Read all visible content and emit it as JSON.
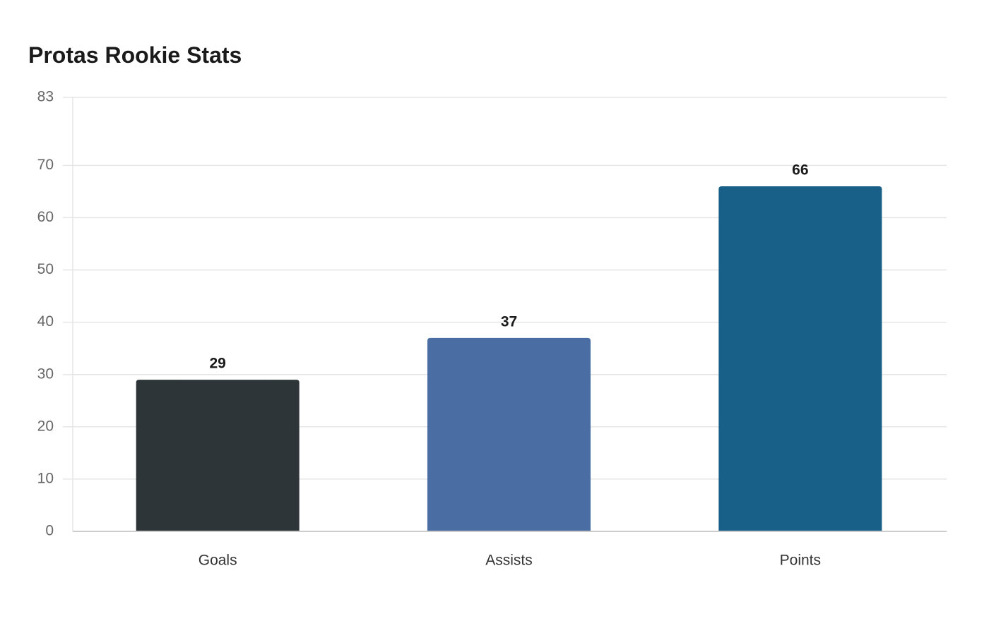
{
  "chart_data": {
    "type": "bar",
    "title": "Protas Rookie Stats",
    "categories": [
      "Goals",
      "Assists",
      "Points"
    ],
    "values": [
      29,
      37,
      66
    ],
    "colors": [
      "#2e3538",
      "#4a6ea3",
      "#186087"
    ],
    "xlabel": "",
    "ylabel": "",
    "ylim": [
      0,
      83
    ],
    "yticks": [
      0,
      10,
      20,
      30,
      40,
      50,
      60,
      70,
      83
    ],
    "data_labels": [
      "29",
      "37",
      "66"
    ],
    "grid": true,
    "legend": "none"
  }
}
